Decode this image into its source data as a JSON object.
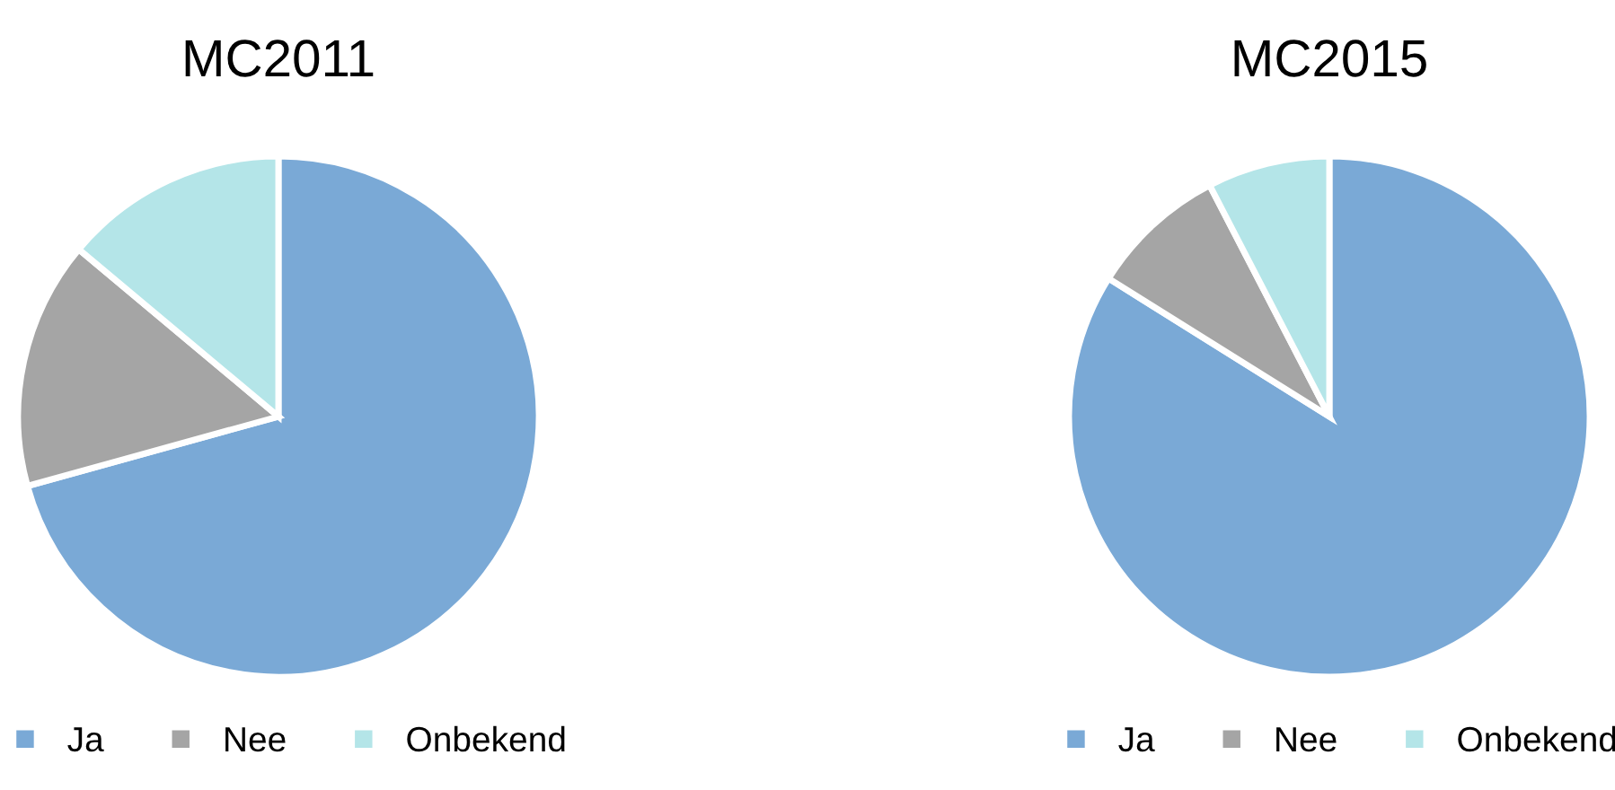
{
  "chart_data": [
    {
      "type": "pie",
      "title": "MC2011",
      "categories": [
        "Ja",
        "Nee",
        "Onbekend"
      ],
      "values": [
        70.7,
        15.4,
        13.9
      ],
      "colors": [
        "#7aa9d6",
        "#a5a5a5",
        "#b4e5e8"
      ],
      "legend": "bottom"
    },
    {
      "type": "pie",
      "title": "MC2015",
      "categories": [
        "Ja",
        "Nee",
        "Onbekend"
      ],
      "values": [
        83.9,
        8.5,
        7.6
      ],
      "colors": [
        "#7aa9d6",
        "#a5a5a5",
        "#b4e5e8"
      ],
      "legend": "bottom"
    }
  ]
}
